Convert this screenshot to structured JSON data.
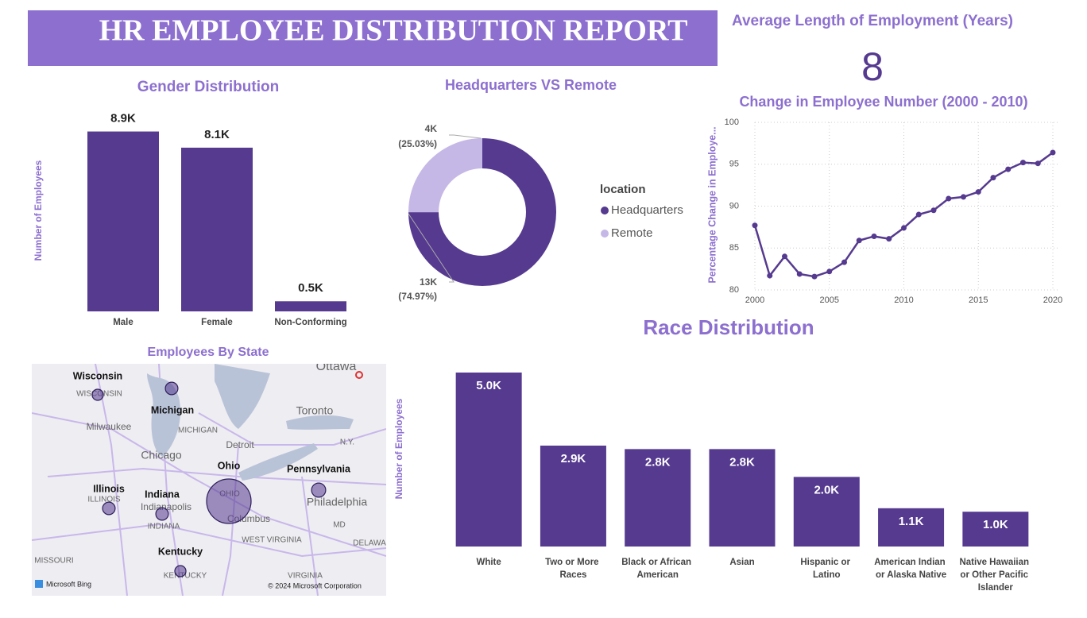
{
  "header": {
    "title": "HR EMPLOYEE DISTRIBUTION REPORT"
  },
  "kpi": {
    "title": "Average Length of Employment (Years)",
    "value": 8
  },
  "chart_data": [
    {
      "type": "bar",
      "title": "Gender Distribution",
      "y_label": "Number of Employees",
      "categories": [
        "Male",
        "Female",
        "Non-Conforming"
      ],
      "values": [
        8900,
        8100,
        500
      ],
      "value_labels": [
        "8.9K",
        "8.1K",
        "0.5K"
      ],
      "color": "#553a8f",
      "ylim": [
        0,
        9000
      ],
      "label_position": "outside"
    },
    {
      "type": "donut",
      "title": "Headquarters VS Remote",
      "legend_title": "location",
      "categories": [
        "Headquarters",
        "Remote"
      ],
      "counts": [
        13000,
        4000
      ],
      "count_labels": [
        "13K",
        "4K"
      ],
      "values": [
        74.97,
        25.03
      ],
      "value_labels": [
        "(74.97%)",
        "(25.03%)"
      ],
      "colors": [
        "#553a8f",
        "#c5b8e6"
      ],
      "legend": "right"
    },
    {
      "type": "line",
      "title": "Change in Employee Number (2000 - 2010)",
      "y_label": "Percentage Change in Employe...",
      "x": [
        2000,
        2001,
        2002,
        2003,
        2004,
        2005,
        2006,
        2007,
        2008,
        2009,
        2010,
        2011,
        2012,
        2013,
        2014,
        2015,
        2016,
        2017,
        2018,
        2019,
        2020
      ],
      "values": [
        87.7,
        81.7,
        84.0,
        81.9,
        81.6,
        82.2,
        83.3,
        85.9,
        86.4,
        86.1,
        87.4,
        89.0,
        89.5,
        90.9,
        91.1,
        91.7,
        93.4,
        94.4,
        95.2,
        95.1,
        96.4
      ],
      "color": "#553a8f",
      "xlim": [
        2000,
        2020
      ],
      "xticks": [
        2000,
        2005,
        2010,
        2015,
        2020
      ],
      "ylim": [
        80,
        100
      ],
      "yticks": [
        80,
        85,
        90,
        95,
        100
      ],
      "grid": true
    },
    {
      "type": "bar",
      "title": "Race Distribution",
      "y_label": "Number of Employees",
      "categories": [
        "White",
        "Two or More Races",
        "Black or African American",
        "Asian",
        "Hispanic or Latino",
        "American Indian or Alaska Native",
        "Native Hawaiian or Other Pacific Islander"
      ],
      "values": [
        5000,
        2900,
        2800,
        2800,
        2000,
        1100,
        1000
      ],
      "value_labels": [
        "5.0K",
        "2.9K",
        "2.8K",
        "2.8K",
        "2.0K",
        "1.1K",
        "1.0K"
      ],
      "color": "#553a8f",
      "ylim": [
        0,
        5000
      ],
      "label_position": "inside"
    },
    {
      "type": "map",
      "title": "Employees By State",
      "states": [
        "Wisconsin",
        "Michigan",
        "Ohio",
        "Pennsylvania",
        "Illinois",
        "Indiana",
        "Kentucky"
      ],
      "values": [
        750,
        950,
        11900,
        1200,
        950,
        950,
        750
      ],
      "color": "#553a8f",
      "places": [
        "Ottawa",
        "Toronto",
        "WISCONSIN",
        "Milwaukee",
        "MICHIGAN",
        "Detroit",
        "Chicago",
        "N.Y.",
        "ILLINOIS",
        "Indianapolis",
        "OHIO",
        "Columbus",
        "Philadelphia",
        "INDIANA",
        "MD",
        "WEST VIRGINIA",
        "DELAWA",
        "MISSOURI",
        "KENTUCKY",
        "VIRGINIA"
      ],
      "attribution": [
        "Microsoft Bing",
        "© 2024 Microsoft Corporation"
      ]
    }
  ]
}
